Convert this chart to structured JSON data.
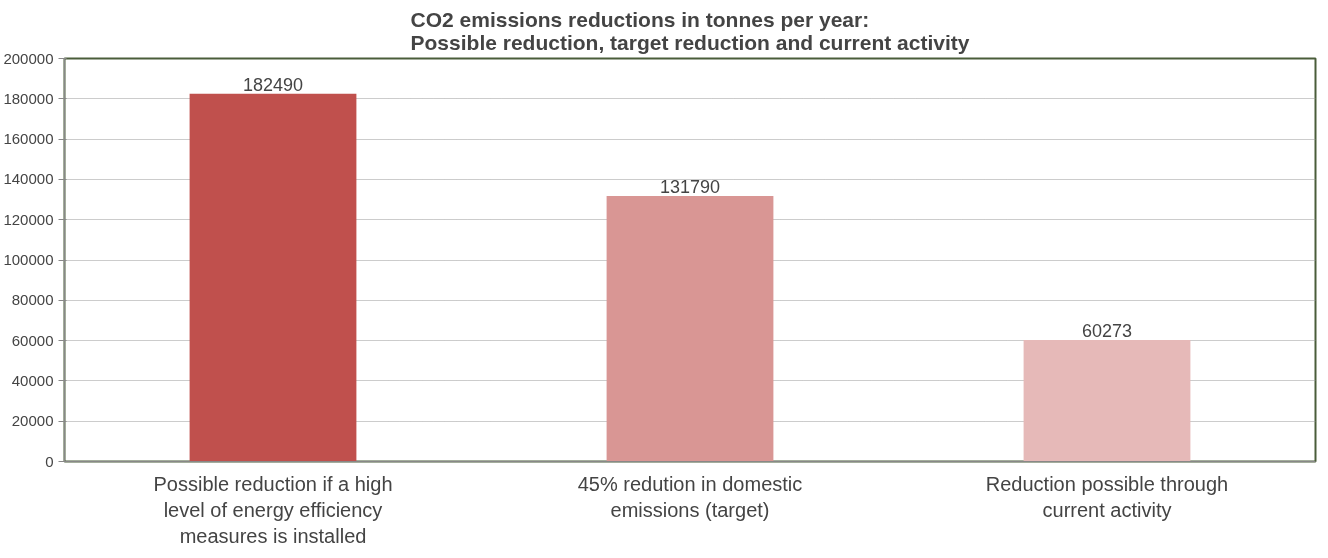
{
  "chart_data": {
    "type": "bar",
    "title": "CO2 emissions reductions in tonnes per year:\nPossible reduction, target reduction and current activity",
    "categories": [
      "Possible reduction if a high level of energy efficiency measures is installed",
      "45% redution in domestic emissions (target)",
      "Reduction possible through current activity"
    ],
    "values": [
      182490,
      131790,
      60273
    ],
    "colors": [
      "#c0504d",
      "#d99694",
      "#e6b9b8"
    ],
    "ylim": [
      0,
      200000
    ],
    "yticks": [
      0,
      20000,
      40000,
      60000,
      80000,
      100000,
      120000,
      140000,
      160000,
      180000,
      200000
    ],
    "grid": "y",
    "data_labels": true
  }
}
